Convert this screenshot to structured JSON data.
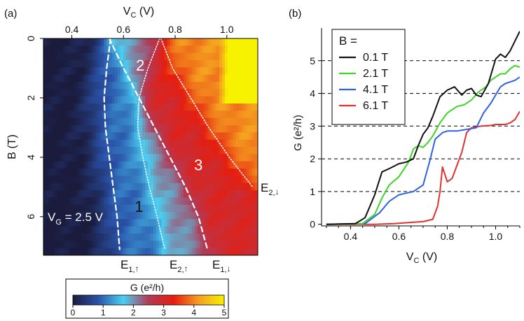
{
  "panel_a": {
    "label": "(a)",
    "chart_data": {
      "type": "heatmap",
      "x_axis": {
        "label": "V",
        "label_sub": "C",
        "label_unit": " (V)",
        "range": [
          0.29,
          1.12
        ],
        "ticks": [
          0.4,
          0.6,
          0.8,
          1.0
        ],
        "tick_labels": [
          "0.4",
          "0.6",
          "0.8",
          "1.0"
        ],
        "position": "top"
      },
      "y_axis": {
        "label": "B (T)",
        "range": [
          0,
          7.3
        ],
        "ticks": [
          0,
          2,
          4,
          6
        ],
        "tick_labels": [
          "0",
          "2",
          "4",
          "6"
        ],
        "inverted": true
      },
      "gate_label": {
        "prefix": "V",
        "sub": "G",
        "suffix": " = 2.5 V"
      },
      "plateau_labels": [
        {
          "text": "1",
          "v": 0.66,
          "b": 5.7
        },
        {
          "text": "2",
          "v": 0.665,
          "b": 0.95
        },
        {
          "text": "3",
          "v": 0.89,
          "b": 4.3
        }
      ],
      "transition_lines": [
        {
          "id": "E1-up",
          "style": "dashed",
          "main": "E",
          "sub": "1,",
          "arrow": "up",
          "points": [
            [
              0.55,
              0
            ],
            [
              0.535,
              1
            ],
            [
              0.525,
              2
            ],
            [
              0.53,
              3
            ],
            [
              0.545,
              4
            ],
            [
              0.56,
              5
            ],
            [
              0.575,
              6
            ],
            [
              0.585,
              7.1
            ]
          ]
        },
        {
          "id": "E2-up",
          "style": "dotted",
          "main": "E",
          "sub": "2,",
          "arrow": "up",
          "points": [
            [
              0.74,
              0
            ],
            [
              0.695,
              1
            ],
            [
              0.66,
              2
            ],
            [
              0.655,
              3
            ],
            [
              0.675,
              4
            ],
            [
              0.7,
              5
            ],
            [
              0.73,
              6
            ],
            [
              0.76,
              7.1
            ]
          ]
        },
        {
          "id": "E1-down",
          "style": "dashed",
          "main": "E",
          "sub": "1,",
          "arrow": "down",
          "points": [
            [
              0.545,
              0
            ],
            [
              0.6,
              1
            ],
            [
              0.66,
              2
            ],
            [
              0.72,
              3
            ],
            [
              0.78,
              4
            ],
            [
              0.84,
              5
            ],
            [
              0.89,
              6
            ],
            [
              0.925,
              7.1
            ]
          ]
        },
        {
          "id": "E2-down",
          "style": "dotted",
          "main": "E",
          "sub": "2,",
          "arrow": "down",
          "points": [
            [
              0.745,
              0
            ],
            [
              0.79,
              1
            ],
            [
              0.86,
              2
            ],
            [
              0.93,
              3
            ],
            [
              1.01,
              4
            ],
            [
              1.1,
              5
            ]
          ]
        }
      ],
      "z_range": [
        0,
        5
      ],
      "colorbar": {
        "title": "G (e²/h)",
        "ticks": [
          0,
          1,
          2,
          3,
          4,
          5
        ],
        "tick_labels": [
          "0",
          "1",
          "2",
          "3",
          "4",
          "5"
        ],
        "colors": [
          "#1b1b3d",
          "#2a52a8",
          "#4ad0f3",
          "#b23a56",
          "#e51e10",
          "#f5a020",
          "#f7f200"
        ]
      }
    }
  },
  "panel_b": {
    "label": "(b)",
    "chart_data": {
      "type": "line",
      "x_axis": {
        "label": "V",
        "label_sub": "C",
        "label_unit": " (V)",
        "range": [
          0.28,
          1.1
        ],
        "ticks": [
          0.4,
          0.6,
          0.8,
          1.0
        ],
        "tick_labels": [
          "0.4",
          "0.6",
          "0.8",
          "1.0"
        ]
      },
      "y_axis": {
        "label": "G (e²/h)",
        "range": [
          -0.05,
          6.0
        ],
        "ticks": [
          0,
          1,
          2,
          3,
          4,
          5
        ],
        "tick_labels": [
          "0",
          "1",
          "2",
          "3",
          "4",
          "5"
        ]
      },
      "reference_lines": [
        1,
        2,
        3,
        4,
        5
      ],
      "legend": {
        "title": "B =",
        "placement": "top-left"
      },
      "series": [
        {
          "name": "0.1 T",
          "color": "#111111",
          "x": [
            0.3,
            0.42,
            0.46,
            0.5,
            0.53,
            0.56,
            0.6,
            0.63,
            0.66,
            0.68,
            0.7,
            0.72,
            0.74,
            0.77,
            0.8,
            0.83,
            0.86,
            0.88,
            0.9,
            0.92,
            0.94,
            0.97,
            1.0,
            1.02,
            1.04,
            1.06,
            1.08,
            1.1
          ],
          "y": [
            0,
            0.02,
            0.2,
            0.9,
            1.6,
            1.7,
            1.85,
            1.9,
            2.0,
            2.4,
            2.75,
            2.95,
            3.3,
            3.9,
            4.1,
            4.2,
            3.95,
            4.1,
            4.15,
            3.95,
            3.9,
            4.3,
            5.05,
            5.2,
            5.1,
            5.3,
            5.6,
            5.9
          ]
        },
        {
          "name": "2.1 T",
          "color": "#3ed428",
          "x": [
            0.3,
            0.45,
            0.5,
            0.53,
            0.56,
            0.6,
            0.64,
            0.66,
            0.68,
            0.7,
            0.72,
            0.74,
            0.77,
            0.8,
            0.84,
            0.87,
            0.9,
            0.93,
            0.96,
            0.98,
            1.0,
            1.02,
            1.04,
            1.06,
            1.08,
            1.1
          ],
          "y": [
            0,
            0.02,
            0.3,
            0.8,
            1.2,
            1.45,
            1.9,
            2.3,
            2.4,
            2.35,
            2.5,
            2.7,
            3.1,
            3.4,
            3.6,
            3.65,
            3.8,
            4.05,
            4.2,
            4.4,
            4.5,
            4.6,
            4.6,
            4.75,
            4.85,
            4.8
          ]
        },
        {
          "name": "4.1 T",
          "color": "#2e62e6",
          "x": [
            0.3,
            0.46,
            0.52,
            0.56,
            0.6,
            0.63,
            0.66,
            0.7,
            0.73,
            0.75,
            0.78,
            0.8,
            0.84,
            0.88,
            0.92,
            0.95,
            0.98,
            1.0,
            1.02,
            1.04,
            1.06,
            1.08,
            1.1
          ],
          "y": [
            0,
            0.02,
            0.35,
            0.7,
            0.9,
            0.95,
            1.0,
            1.2,
            2.0,
            2.6,
            2.8,
            2.85,
            2.85,
            2.9,
            2.95,
            3.4,
            3.7,
            3.95,
            4.2,
            4.3,
            4.35,
            4.4,
            4.5
          ]
        },
        {
          "name": "6.1 T",
          "color": "#e33030",
          "x": [
            0.3,
            0.5,
            0.58,
            0.64,
            0.7,
            0.74,
            0.76,
            0.77,
            0.78,
            0.8,
            0.82,
            0.84,
            0.86,
            0.88,
            0.9,
            0.94,
            0.98,
            1.0,
            1.02,
            1.04,
            1.06,
            1.08,
            1.1
          ],
          "y": [
            0,
            0.0,
            0.02,
            0.05,
            0.08,
            0.15,
            0.55,
            1.0,
            1.75,
            1.3,
            1.4,
            1.8,
            2.2,
            2.8,
            2.95,
            3.0,
            3.02,
            3.05,
            3.05,
            3.05,
            3.1,
            3.2,
            3.45
          ]
        }
      ]
    }
  }
}
